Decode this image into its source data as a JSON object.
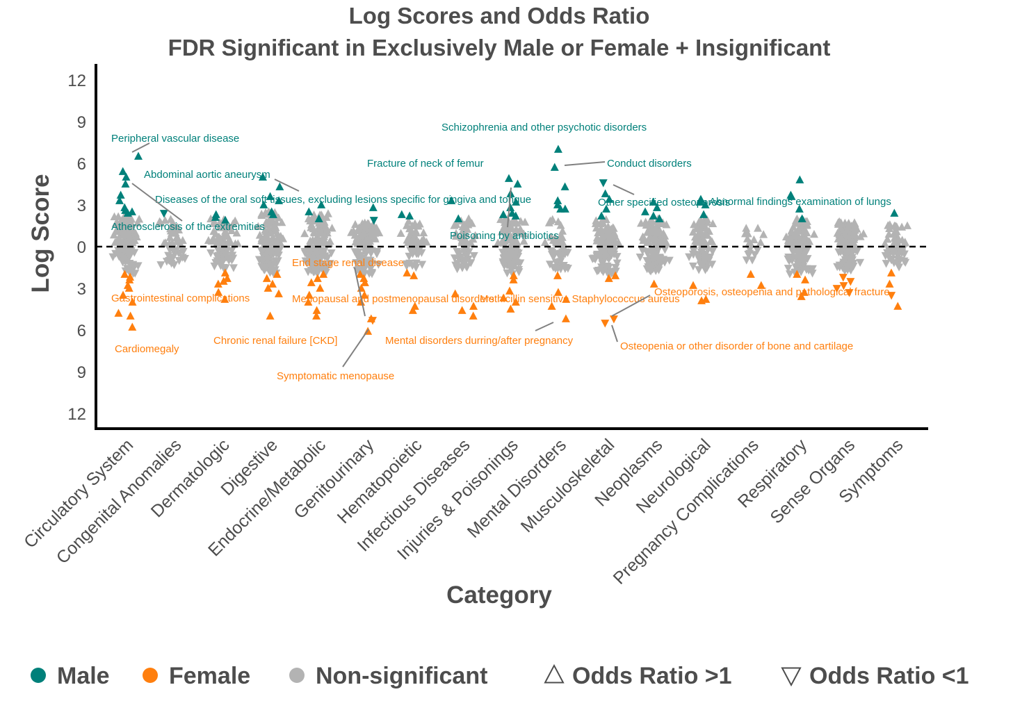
{
  "chart_data": {
    "type": "scatter",
    "title": "Log Scores and Odds Ratio",
    "subtitle": "FDR Significant in Exclusively Male or Female + Insignificant",
    "xlabel": "Category",
    "ylabel": "Log Score",
    "ylim": [
      -12,
      12
    ],
    "yticks": [
      {
        "value": 12,
        "label": "12"
      },
      {
        "value": 9,
        "label": "9"
      },
      {
        "value": 6,
        "label": "6"
      },
      {
        "value": 3,
        "label": "3"
      },
      {
        "value": 0,
        "label": "0"
      },
      {
        "value": -3,
        "label": "3"
      },
      {
        "value": -6,
        "label": "6"
      },
      {
        "value": -9,
        "label": "9"
      },
      {
        "value": -12,
        "label": "12"
      }
    ],
    "categories": [
      "Circulatory System",
      "Congenital Anomalies",
      "Dermatologic",
      "Digestive",
      "Endocrine/Metabolic",
      "Genitourinary",
      "Hematopoietic",
      "Infectious Diseases",
      "Injuries & Poisonings",
      "Mental Disorders",
      "Musculoskeletal",
      "Neoplasms",
      "Neurological",
      "Pregnancy Complications",
      "Respiratory",
      "Sense Organs",
      "Symptoms"
    ],
    "colors": {
      "male": "#00807a",
      "female": "#ff7f0e",
      "nonsig": "#b3b3b3",
      "zero_line": "#000000",
      "label_line": "#808080"
    },
    "legend": {
      "placement": "bottom",
      "items": [
        {
          "label": "Male",
          "marker": "circle",
          "color": "#00807a"
        },
        {
          "label": "Female",
          "marker": "circle",
          "color": "#ff7f0e"
        },
        {
          "label": "Non-significant",
          "marker": "circle",
          "color": "#b3b3b3"
        },
        {
          "label": "Odds Ratio >1",
          "marker": "triangle-up-open",
          "color": "#4d4d4d"
        },
        {
          "label": "Odds Ratio <1",
          "marker": "triangle-down-open",
          "color": "#4d4d4d"
        }
      ]
    },
    "groups": [
      {
        "category": "Circulatory System",
        "nonsig_count": 140,
        "nonsig_up": [
          0.2,
          2.2
        ],
        "nonsig_down": [
          -0.2,
          -2.0
        ],
        "male": [
          [
            6.5,
            "up"
          ],
          [
            5.4,
            "up"
          ],
          [
            5.0,
            "up"
          ],
          [
            4.5,
            "up"
          ],
          [
            3.7,
            "up"
          ],
          [
            3.3,
            "up"
          ],
          [
            2.8,
            "up"
          ],
          [
            2.6,
            "up"
          ],
          [
            2.5,
            "up"
          ],
          [
            2.4,
            "up"
          ]
        ],
        "female": [
          [
            -2.0,
            "up"
          ],
          [
            -2.2,
            "up"
          ],
          [
            -2.4,
            "up"
          ],
          [
            -2.8,
            "up"
          ],
          [
            -3.0,
            "up"
          ],
          [
            -3.5,
            "up"
          ],
          [
            -4.0,
            "up"
          ],
          [
            -4.8,
            "up"
          ],
          [
            -5.0,
            "up"
          ],
          [
            -5.8,
            "up"
          ]
        ]
      },
      {
        "category": "Congenital Anomalies",
        "nonsig_count": 45,
        "nonsig_up": [
          0.2,
          2.0
        ],
        "nonsig_down": [
          -0.2,
          -1.3
        ],
        "male": [
          [
            2.4,
            "down"
          ]
        ],
        "female": []
      },
      {
        "category": "Dermatologic",
        "nonsig_count": 80,
        "nonsig_up": [
          0.2,
          2.0
        ],
        "nonsig_down": [
          -0.2,
          -1.7
        ],
        "male": [
          [
            2.3,
            "up"
          ],
          [
            2.1,
            "up"
          ],
          [
            1.9,
            "up"
          ]
        ],
        "female": [
          [
            -1.9,
            "up"
          ],
          [
            -2.3,
            "up"
          ],
          [
            -2.5,
            "up"
          ],
          [
            -2.7,
            "up"
          ],
          [
            -3.3,
            "up"
          ],
          [
            -3.8,
            "up"
          ]
        ]
      },
      {
        "category": "Digestive",
        "nonsig_count": 130,
        "nonsig_up": [
          0.2,
          2.5
        ],
        "nonsig_down": [
          -0.2,
          -2.0
        ],
        "male": [
          [
            5.0,
            "up"
          ],
          [
            4.3,
            "up"
          ],
          [
            3.6,
            "up"
          ],
          [
            3.3,
            "up"
          ],
          [
            3.0,
            "up"
          ],
          [
            2.5,
            "up"
          ],
          [
            2.3,
            "up"
          ]
        ],
        "female": [
          [
            -2.0,
            "up"
          ],
          [
            -2.3,
            "up"
          ],
          [
            -2.7,
            "up"
          ],
          [
            -3.0,
            "up"
          ],
          [
            -3.4,
            "up"
          ],
          [
            -5.0,
            "up"
          ]
        ]
      },
      {
        "category": "Endocrine/Metabolic",
        "nonsig_count": 130,
        "nonsig_up": [
          0.2,
          2.4
        ],
        "nonsig_down": [
          -0.2,
          -2.0
        ],
        "male": [
          [
            3.0,
            "up"
          ],
          [
            2.5,
            "up"
          ],
          [
            2.0,
            "up"
          ]
        ],
        "female": [
          [
            -2.0,
            "up"
          ],
          [
            -2.3,
            "up"
          ],
          [
            -2.6,
            "up"
          ],
          [
            -3.0,
            "up"
          ],
          [
            -3.5,
            "up"
          ],
          [
            -4.0,
            "up"
          ],
          [
            -4.6,
            "up"
          ],
          [
            -5.0,
            "up"
          ]
        ]
      },
      {
        "category": "Genitourinary",
        "nonsig_count": 120,
        "nonsig_up": [
          0.2,
          1.8
        ],
        "nonsig_down": [
          -0.2,
          -2.0
        ],
        "male": [
          [
            2.8,
            "up"
          ],
          [
            1.9,
            "down"
          ]
        ],
        "female": [
          [
            -2.0,
            "up"
          ],
          [
            -2.3,
            "up"
          ],
          [
            -2.6,
            "up"
          ],
          [
            -3.0,
            "up"
          ],
          [
            -3.5,
            "up"
          ],
          [
            -4.0,
            "up"
          ],
          [
            -5.3,
            "down"
          ],
          [
            -5.2,
            "up"
          ],
          [
            -6.1,
            "up"
          ]
        ]
      },
      {
        "category": "Hematopoietic",
        "nonsig_count": 50,
        "nonsig_up": [
          0.2,
          2.0
        ],
        "nonsig_down": [
          -0.2,
          -1.5
        ],
        "male": [
          [
            2.2,
            "up"
          ],
          [
            2.3,
            "up"
          ]
        ],
        "female": [
          [
            -2.1,
            "up"
          ],
          [
            -1.9,
            "up"
          ],
          [
            -4.3,
            "up"
          ],
          [
            -4.6,
            "up"
          ]
        ]
      },
      {
        "category": "Infectious Diseases",
        "nonsig_count": 55,
        "nonsig_up": [
          0.2,
          2.0
        ],
        "nonsig_down": [
          -0.2,
          -1.6
        ],
        "male": [
          [
            3.3,
            "up"
          ],
          [
            2.0,
            "up"
          ]
        ],
        "female": [
          [
            -3.4,
            "up"
          ],
          [
            -4.3,
            "up"
          ],
          [
            -4.6,
            "up"
          ],
          [
            -5.0,
            "up"
          ]
        ]
      },
      {
        "category": "Injuries & Poisonings",
        "nonsig_count": 110,
        "nonsig_up": [
          0.2,
          2.0
        ],
        "nonsig_down": [
          -0.2,
          -2.0
        ],
        "male": [
          [
            4.9,
            "up"
          ],
          [
            4.5,
            "up"
          ],
          [
            3.8,
            "up"
          ],
          [
            3.2,
            "up"
          ],
          [
            2.8,
            "up"
          ],
          [
            2.3,
            "up"
          ],
          [
            2.4,
            "up"
          ],
          [
            2.2,
            "up"
          ]
        ],
        "female": [
          [
            -2.1,
            "up"
          ],
          [
            -2.4,
            "up"
          ],
          [
            -3.2,
            "up"
          ],
          [
            -3.7,
            "up"
          ],
          [
            -4.0,
            "up"
          ],
          [
            -4.5,
            "up"
          ]
        ]
      },
      {
        "category": "Mental Disorders",
        "nonsig_count": 50,
        "nonsig_up": [
          0.2,
          2.0
        ],
        "nonsig_down": [
          -0.2,
          -1.6
        ],
        "male": [
          [
            7.0,
            "up"
          ],
          [
            5.7,
            "up"
          ],
          [
            4.3,
            "up"
          ],
          [
            3.3,
            "up"
          ],
          [
            3.0,
            "up"
          ],
          [
            2.7,
            "up"
          ],
          [
            2.7,
            "up"
          ]
        ],
        "female": [
          [
            -2.1,
            "up"
          ],
          [
            -3.3,
            "up"
          ],
          [
            -3.8,
            "up"
          ],
          [
            -4.3,
            "up"
          ],
          [
            -5.2,
            "up"
          ]
        ]
      },
      {
        "category": "Musculoskeletal",
        "nonsig_count": 120,
        "nonsig_up": [
          0.2,
          2.0
        ],
        "nonsig_down": [
          -0.2,
          -2.0
        ],
        "male": [
          [
            4.6,
            "down"
          ],
          [
            3.8,
            "up"
          ],
          [
            3.4,
            "up"
          ],
          [
            2.7,
            "up"
          ],
          [
            2.2,
            "up"
          ]
        ],
        "female": [
          [
            -2.1,
            "up"
          ],
          [
            -2.3,
            "up"
          ],
          [
            -5.2,
            "down"
          ],
          [
            -5.5,
            "down"
          ]
        ]
      },
      {
        "category": "Neoplasms",
        "nonsig_count": 110,
        "nonsig_up": [
          0.2,
          2.0
        ],
        "nonsig_down": [
          -0.2,
          -1.8
        ],
        "male": [
          [
            3.2,
            "up"
          ],
          [
            2.8,
            "up"
          ],
          [
            2.5,
            "up"
          ],
          [
            2.2,
            "up"
          ],
          [
            2.0,
            "up"
          ]
        ],
        "female": [
          [
            -2.7,
            "up"
          ]
        ]
      },
      {
        "category": "Neurological",
        "nonsig_count": 95,
        "nonsig_up": [
          0.2,
          2.0
        ],
        "nonsig_down": [
          -0.2,
          -1.8
        ],
        "male": [
          [
            3.4,
            "up"
          ],
          [
            3.2,
            "up"
          ],
          [
            3.0,
            "up"
          ],
          [
            2.3,
            "up"
          ]
        ],
        "female": [
          [
            -2.8,
            "up"
          ],
          [
            -3.8,
            "up"
          ],
          [
            -3.9,
            "up"
          ]
        ]
      },
      {
        "category": "Pregnancy Complications",
        "nonsig_count": 18,
        "nonsig_up": [
          0.2,
          1.5
        ],
        "nonsig_down": [
          -0.2,
          -1.5
        ],
        "male": [],
        "female": [
          [
            -2.0,
            "up"
          ],
          [
            -2.8,
            "up"
          ]
        ]
      },
      {
        "category": "Respiratory",
        "nonsig_count": 110,
        "nonsig_up": [
          0.2,
          2.0
        ],
        "nonsig_down": [
          -0.2,
          -2.0
        ],
        "male": [
          [
            4.8,
            "up"
          ],
          [
            3.7,
            "up"
          ],
          [
            3.6,
            "up"
          ],
          [
            2.7,
            "up"
          ],
          [
            2.0,
            "up"
          ]
        ],
        "female": [
          [
            -2.0,
            "up"
          ],
          [
            -2.4,
            "up"
          ],
          [
            -3.3,
            "up"
          ],
          [
            -3.6,
            "up"
          ]
        ]
      },
      {
        "category": "Sense Organs",
        "nonsig_count": 130,
        "nonsig_up": [
          0.2,
          1.8
        ],
        "nonsig_down": [
          -0.2,
          -1.8
        ],
        "male": [],
        "female": [
          [
            -2.2,
            "down"
          ],
          [
            -2.5,
            "down"
          ],
          [
            -2.8,
            "down"
          ],
          [
            -3.0,
            "down"
          ],
          [
            -3.3,
            "down"
          ]
        ]
      },
      {
        "category": "Symptoms",
        "nonsig_count": 50,
        "nonsig_up": [
          0.2,
          1.8
        ],
        "nonsig_down": [
          -0.2,
          -1.5
        ],
        "male": [
          [
            2.4,
            "up"
          ]
        ],
        "female": [
          [
            -1.9,
            "up"
          ],
          [
            -2.7,
            "up"
          ],
          [
            -3.5,
            "down"
          ],
          [
            -4.3,
            "up"
          ]
        ]
      }
    ],
    "annotations": [
      {
        "text": "Peripheral vascular disease",
        "group": "male",
        "anchor": "start"
      },
      {
        "text": "Abdominal aortic aneurysm",
        "group": "male",
        "anchor": "start"
      },
      {
        "text": "Diseases of the oral soft tissues, excluding lesions specific for gingiva and tongue",
        "group": "male",
        "anchor": "start"
      },
      {
        "text": "Atherosclerosis of the extremities",
        "group": "male",
        "anchor": "start"
      },
      {
        "text": "Fracture of neck of femur",
        "group": "male",
        "anchor": "start"
      },
      {
        "text": "Schizophrenia and other psychotic disorders",
        "group": "male",
        "anchor": "start"
      },
      {
        "text": "Conduct disorders",
        "group": "male",
        "anchor": "start"
      },
      {
        "text": "Poisoning by antibiotics",
        "group": "male",
        "anchor": "start"
      },
      {
        "text": "Other specified osteoporosis",
        "group": "male",
        "anchor": "start"
      },
      {
        "text": "Abnormal findings examination of lungs",
        "group": "male",
        "anchor": "start"
      },
      {
        "text": "End stage renal disease",
        "group": "female",
        "anchor": "start"
      },
      {
        "text": "Gastrointestinal complications",
        "group": "female",
        "anchor": "start"
      },
      {
        "text": "Menopausal and postmenopausal disorders",
        "group": "female",
        "anchor": "start"
      },
      {
        "text": "Methicillin sensitive Staphylococcus aureus",
        "group": "female",
        "anchor": "start"
      },
      {
        "text": "Osteoporosis, osteopenia and pathological fracture",
        "group": "female",
        "anchor": "start"
      },
      {
        "text": "Cardiomegaly",
        "group": "female",
        "anchor": "start"
      },
      {
        "text": "Chronic renal failure [CKD]",
        "group": "female",
        "anchor": "start"
      },
      {
        "text": "Mental disorders durring/after pregnancy",
        "group": "female",
        "anchor": "start"
      },
      {
        "text": "Osteopenia or other disorder of bone and cartilage",
        "group": "female",
        "anchor": "start"
      },
      {
        "text": "Symptomatic menopause",
        "group": "female",
        "anchor": "start"
      }
    ]
  }
}
